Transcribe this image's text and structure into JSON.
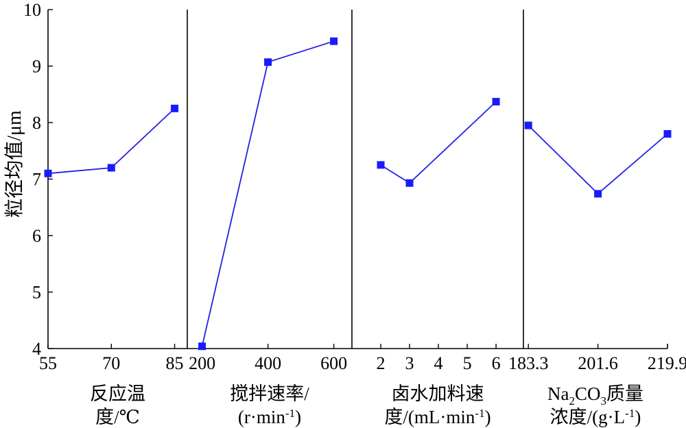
{
  "chart_data": {
    "type": "line",
    "ylabel": "粒径均值/μm",
    "ylim": [
      4,
      10
    ],
    "yticks": [
      "4",
      "5",
      "6",
      "7",
      "8",
      "9",
      "10"
    ],
    "grid": false,
    "line_color": "#2020e0",
    "marker_color": "#1a1aff",
    "panels": [
      {
        "xlabel_lines": [
          "反应温",
          "度/℃"
        ],
        "categories": [
          "55",
          "70",
          "85"
        ],
        "tick_values": [
          55,
          70,
          85
        ],
        "x": [
          55,
          70,
          85
        ],
        "values": [
          7.1,
          7.2,
          8.25
        ],
        "xlim": [
          55,
          88
        ]
      },
      {
        "xlabel_lines": [
          "搅拌速率/",
          "(r·min-1)"
        ],
        "categories": [
          "200",
          "400",
          "600"
        ],
        "tick_values": [
          200,
          400,
          600
        ],
        "x": [
          200,
          400,
          600
        ],
        "values": [
          4.04,
          9.07,
          9.44
        ],
        "xlim": [
          155,
          655
        ]
      },
      {
        "xlabel_lines": [
          "卤水加料速",
          "度/(mL·min-1)"
        ],
        "categories": [
          "2",
          "3",
          "4",
          "5",
          "6"
        ],
        "tick_values": [
          2,
          3,
          4,
          5,
          6
        ],
        "x": [
          2,
          3,
          6
        ],
        "values": [
          7.25,
          6.93,
          8.37
        ],
        "xlim": [
          1.0,
          6.95
        ]
      },
      {
        "xlabel_lines": [
          "Na2CO3质量",
          "浓度/(g·L-1)"
        ],
        "categories": [
          "183.3",
          "201.6",
          "219.9"
        ],
        "tick_values": [
          183.3,
          201.6,
          219.9
        ],
        "x": [
          183.3,
          201.6,
          219.9
        ],
        "values": [
          7.95,
          6.74,
          7.8
        ],
        "xlim": [
          182.0,
          219.9
        ]
      }
    ]
  }
}
